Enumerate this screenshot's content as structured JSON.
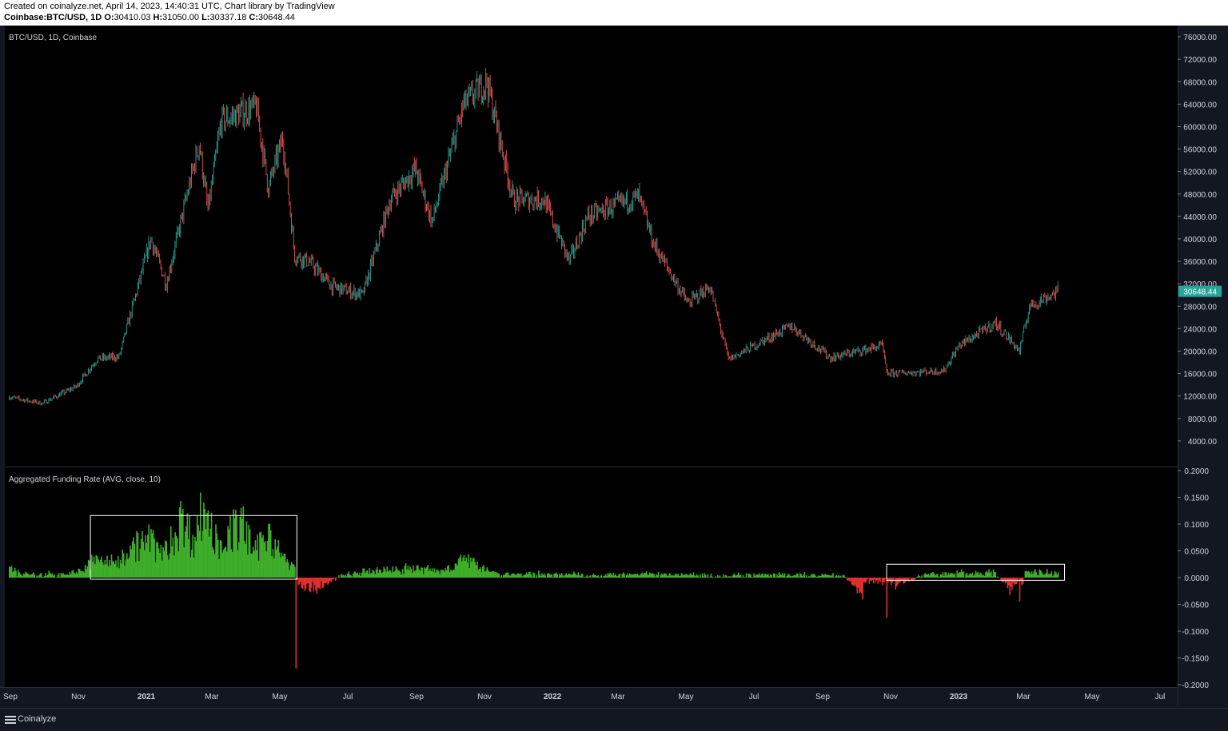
{
  "header": {
    "line1": "Created on coinalyze.net, April 14, 2023, 14:40:31 UTC, Chart library by TradingView",
    "symbol": "Coinbase:BTC/USD, 1D",
    "o_label": "O:",
    "o_value": "30410.03",
    "h_label": "H:",
    "h_value": "31050.00",
    "l_label": "L:",
    "l_value": "30337.18",
    "c_label": "C:",
    "c_value": "30648.44"
  },
  "footer": {
    "brand": "Coinalyze"
  },
  "colors": {
    "up": "#26a69a",
    "down": "#ef5350",
    "pos_bar": "#3fae2a",
    "neg_bar": "#e03030",
    "background": "#000000",
    "panel_border": "#2a2e39",
    "last_price_bg": "#26a69a"
  },
  "chart_data": [
    {
      "type": "candlestick",
      "title": "BTC/USD, 1D, Coinbase",
      "ylim": [
        0,
        78000
      ],
      "y_ticks": [
        "4000.00",
        "8000.00",
        "12000.00",
        "16000.00",
        "20000.00",
        "24000.00",
        "28000.00",
        "32000.00",
        "36000.00",
        "40000.00",
        "44000.00",
        "48000.00",
        "52000.00",
        "56000.00",
        "60000.00",
        "64000.00",
        "68000.00",
        "72000.00",
        "76000.00"
      ],
      "last_price": "30648.44",
      "x": [
        "2020-09-01",
        "2020-10-01",
        "2020-11-01",
        "2020-11-20",
        "2020-12-10",
        "2021-01-08",
        "2021-01-22",
        "2021-02-21",
        "2021-03-01",
        "2021-03-13",
        "2021-04-14",
        "2021-04-25",
        "2021-05-08",
        "2021-05-19",
        "2021-06-01",
        "2021-06-22",
        "2021-07-20",
        "2021-08-14",
        "2021-09-06",
        "2021-09-21",
        "2021-10-20",
        "2021-11-10",
        "2021-12-04",
        "2022-01-01",
        "2022-01-24",
        "2022-02-10",
        "2022-03-28",
        "2022-04-11",
        "2022-05-12",
        "2022-06-01",
        "2022-06-18",
        "2022-08-14",
        "2022-09-19",
        "2022-11-05",
        "2022-11-09",
        "2022-12-31",
        "2023-01-14",
        "2023-02-16",
        "2023-03-10",
        "2023-03-19",
        "2023-04-14"
      ],
      "close": [
        11800,
        10700,
        13700,
        18600,
        19000,
        40000,
        32000,
        57000,
        45000,
        61000,
        63500,
        49000,
        58000,
        37000,
        36000,
        31500,
        30000,
        47000,
        52500,
        43000,
        64000,
        68000,
        47000,
        47000,
        36000,
        44000,
        47500,
        39000,
        28500,
        31500,
        18500,
        24500,
        18800,
        21000,
        16000,
        16500,
        21000,
        25000,
        20000,
        28000,
        30648
      ]
    },
    {
      "type": "bar",
      "title": "Aggregated Funding Rate (AVG, close, 10)",
      "ylim": [
        -0.2,
        0.2
      ],
      "y_ticks": [
        "0.2000",
        "0.1500",
        "0.1000",
        "0.0500",
        "0.0000",
        "-0.0500",
        "-0.1000",
        "-0.1500",
        "-0.2000"
      ],
      "x": [
        "2020-09-01",
        "2020-09-20",
        "2020-10-10",
        "2020-11-01",
        "2020-11-20",
        "2020-12-05",
        "2020-12-20",
        "2021-01-05",
        "2021-01-20",
        "2021-02-05",
        "2021-02-15",
        "2021-02-25",
        "2021-03-10",
        "2021-03-20",
        "2021-04-01",
        "2021-04-12",
        "2021-04-25",
        "2021-05-08",
        "2021-05-19",
        "2021-05-20",
        "2021-05-25",
        "2021-06-10",
        "2021-07-01",
        "2021-08-01",
        "2021-09-01",
        "2021-10-01",
        "2021-10-15",
        "2021-11-01",
        "2021-11-20",
        "2022-01-01",
        "2022-03-01",
        "2022-05-01",
        "2022-06-15",
        "2022-08-01",
        "2022-10-01",
        "2022-11-09",
        "2022-11-20",
        "2022-12-15",
        "2023-01-15",
        "2023-02-15",
        "2023-03-10",
        "2023-03-15",
        "2023-04-14"
      ],
      "values": [
        0.02,
        0.005,
        0.008,
        0.01,
        0.04,
        0.03,
        0.06,
        0.08,
        0.05,
        0.12,
        0.08,
        0.14,
        0.07,
        0.09,
        0.11,
        0.05,
        0.1,
        0.04,
        0.02,
        -0.17,
        -0.02,
        -0.02,
        0.005,
        0.015,
        0.02,
        0.015,
        0.035,
        0.03,
        0.008,
        0.008,
        0.006,
        0.008,
        0.005,
        0.006,
        0.005,
        -0.075,
        -0.01,
        0.006,
        0.01,
        0.01,
        -0.045,
        0.012,
        0.01
      ]
    }
  ],
  "x_axis_labels": [
    "Sep",
    "Nov",
    "2021",
    "Mar",
    "May",
    "Jul",
    "Sep",
    "Nov",
    "2022",
    "Mar",
    "May",
    "Jul",
    "Sep",
    "Nov",
    "2023",
    "Mar",
    "May",
    "Jul"
  ]
}
